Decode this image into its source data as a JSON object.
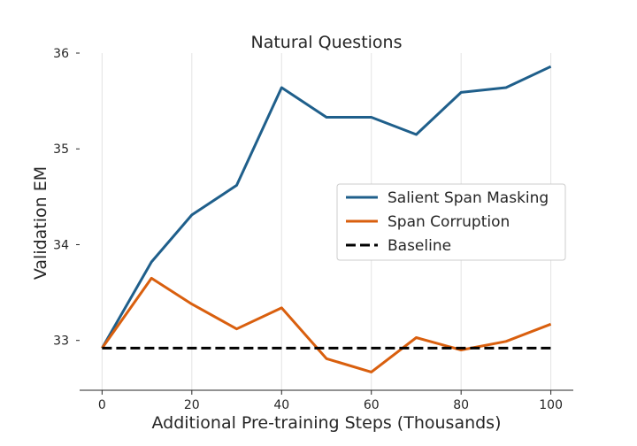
{
  "chart_data": {
    "type": "line",
    "title": "Natural Questions",
    "xlabel": "Additional Pre-training Steps (Thousands)",
    "ylabel": "Validation EM",
    "xlim": [
      -5,
      105
    ],
    "ylim": [
      32.48,
      36.0
    ],
    "xticks": [
      0,
      20,
      40,
      60,
      80,
      100
    ],
    "yticks": [
      33,
      34,
      35,
      36
    ],
    "grid": "vertical",
    "legend_position": "center-right",
    "series": [
      {
        "name": "Salient Span Masking",
        "color": "#1f5f8b",
        "style": "solid",
        "x": [
          0,
          11,
          20,
          30,
          40,
          50,
          60,
          70,
          80,
          90,
          100
        ],
        "y": [
          32.92,
          33.82,
          34.31,
          34.62,
          35.64,
          35.33,
          35.33,
          35.15,
          35.59,
          35.64,
          35.86
        ]
      },
      {
        "name": "Span Corruption",
        "color": "#d95f0e",
        "style": "solid",
        "x": [
          0,
          11,
          20,
          30,
          40,
          50,
          60,
          70,
          80,
          90,
          100
        ],
        "y": [
          32.92,
          33.65,
          33.38,
          33.12,
          33.34,
          32.81,
          32.67,
          33.03,
          32.9,
          32.99,
          33.17
        ]
      },
      {
        "name": "Baseline",
        "color": "#000000",
        "style": "dashed",
        "x": [
          0,
          100
        ],
        "y": [
          32.92,
          32.92
        ]
      }
    ]
  }
}
